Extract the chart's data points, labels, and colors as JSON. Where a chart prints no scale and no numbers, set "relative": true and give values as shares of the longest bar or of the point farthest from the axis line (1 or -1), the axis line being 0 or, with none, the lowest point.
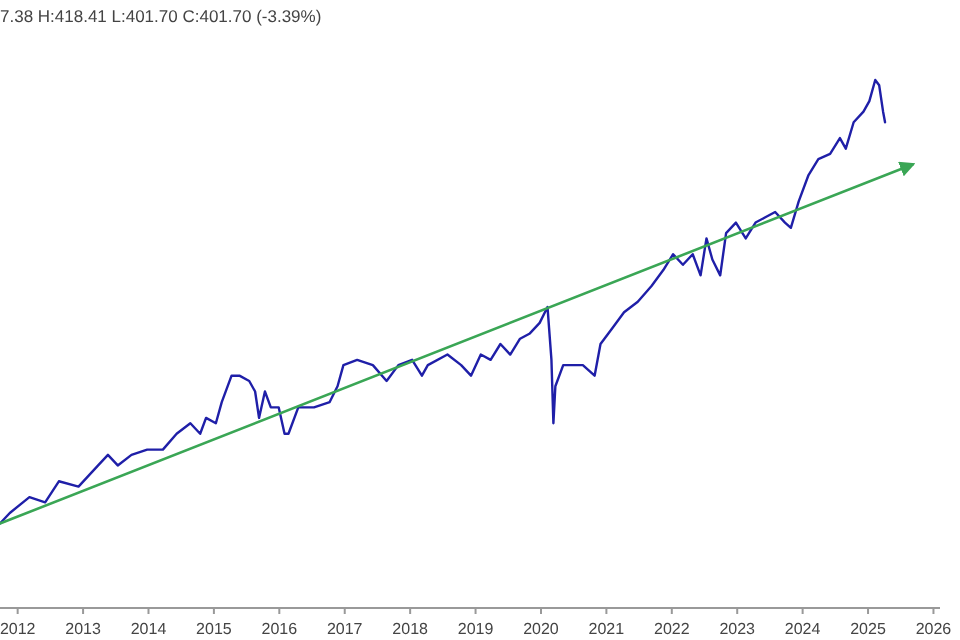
{
  "chart_data": {
    "type": "line",
    "relative": true,
    "tick_labels": "x",
    "annotations": [
      "7.38 H:418.41 L:401.70 C:401.70 (-3.39%)"
    ],
    "xlim": [
      2011.73,
      2026.1
    ],
    "xticks": [
      2012,
      2013,
      2014,
      2015,
      2016,
      2017,
      2018,
      2019,
      2020,
      2021,
      2022,
      2023,
      2024,
      2025,
      2026
    ],
    "series": [
      {
        "color": "#1f1fa8",
        "x": [
          2011.73,
          2011.88,
          2012.18,
          2012.42,
          2012.63,
          2012.93,
          2013.23,
          2013.38,
          2013.53,
          2013.74,
          2013.98,
          2014.22,
          2014.43,
          2014.64,
          2014.79,
          2014.88,
          2015.03,
          2015.12,
          2015.27,
          2015.39,
          2015.54,
          2015.63,
          2015.69,
          2015.78,
          2015.87,
          2015.99,
          2016.08,
          2016.14,
          2016.29,
          2016.53,
          2016.77,
          2016.89,
          2016.98,
          2017.19,
          2017.43,
          2017.64,
          2017.82,
          2018.03,
          2018.18,
          2018.27,
          2018.57,
          2018.78,
          2018.93,
          2019.08,
          2019.23,
          2019.38,
          2019.53,
          2019.68,
          2019.83,
          2019.98,
          2020.1,
          2020.16,
          2020.19,
          2020.22,
          2020.34,
          2020.49,
          2020.64,
          2020.82,
          2020.91,
          2021.09,
          2021.27,
          2021.48,
          2021.69,
          2021.87,
          2022.02,
          2022.17,
          2022.32,
          2022.44,
          2022.53,
          2022.62,
          2022.74,
          2022.83,
          2022.98,
          2023.13,
          2023.28,
          2023.43,
          2023.58,
          2023.73,
          2023.82,
          2023.94,
          2024.09,
          2024.24,
          2024.42,
          2024.57,
          2024.66,
          2024.78,
          2024.93,
          2025.02,
          2025.11,
          2025.17,
          2025.23,
          2025.26
        ],
        "values": [
          0.16,
          0.18,
          0.21,
          0.2,
          0.24,
          0.23,
          0.27,
          0.29,
          0.27,
          0.29,
          0.3,
          0.3,
          0.33,
          0.35,
          0.33,
          0.36,
          0.35,
          0.39,
          0.44,
          0.44,
          0.43,
          0.41,
          0.36,
          0.41,
          0.38,
          0.38,
          0.33,
          0.33,
          0.38,
          0.38,
          0.39,
          0.42,
          0.46,
          0.47,
          0.46,
          0.43,
          0.46,
          0.47,
          0.44,
          0.46,
          0.48,
          0.46,
          0.44,
          0.48,
          0.47,
          0.5,
          0.48,
          0.51,
          0.52,
          0.54,
          0.57,
          0.47,
          0.35,
          0.42,
          0.46,
          0.46,
          0.46,
          0.44,
          0.5,
          0.53,
          0.56,
          0.58,
          0.61,
          0.64,
          0.67,
          0.65,
          0.67,
          0.63,
          0.7,
          0.66,
          0.63,
          0.71,
          0.73,
          0.7,
          0.73,
          0.74,
          0.75,
          0.73,
          0.72,
          0.77,
          0.82,
          0.85,
          0.86,
          0.89,
          0.87,
          0.92,
          0.94,
          0.96,
          1,
          0.99,
          0.94,
          0.92
        ]
      },
      {
        "type": "line",
        "color": "#3aa655",
        "x": [
          2011.73,
          2025.68
        ],
        "values": [
          0.16,
          0.84
        ]
      }
    ]
  }
}
